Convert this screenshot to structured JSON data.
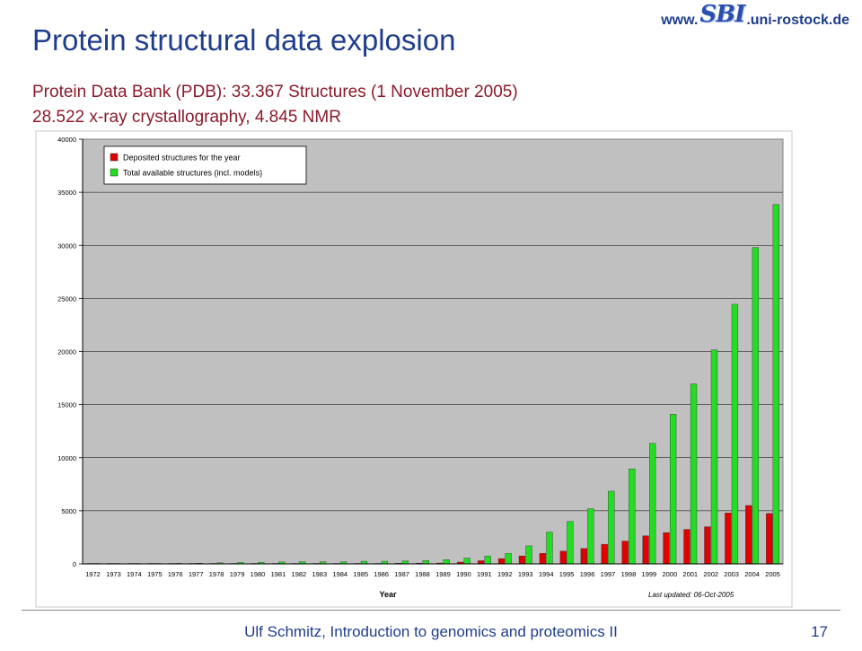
{
  "slide": {
    "title": "Protein structural data explosion",
    "subtitle1": "Protein Data Bank (PDB): 33.367 Structures (1 November 2005)",
    "subtitle2": "28.522 x-ray crystallography, 4.845 NMR",
    "logo_prefix": "www.",
    "logo_mark": "SBI",
    "logo_suffix": ".uni-rostock.de",
    "footer": "Ulf Schmitz, Introduction to genomics and proteomics II",
    "page_number": "17"
  },
  "chart_data": {
    "type": "bar",
    "xlabel": "Year",
    "ylabel": "",
    "ylim": [
      0,
      40000
    ],
    "yticks": [
      0,
      5000,
      10000,
      15000,
      20000,
      25000,
      30000,
      35000,
      40000
    ],
    "grid": true,
    "legend_position": "top-left",
    "note": "Last updated: 06-Oct-2005",
    "categories": [
      "1972",
      "1973",
      "1974",
      "1975",
      "1976",
      "1977",
      "1978",
      "1979",
      "1980",
      "1981",
      "1982",
      "1983",
      "1984",
      "1985",
      "1986",
      "1987",
      "1988",
      "1989",
      "1990",
      "1991",
      "1992",
      "1993",
      "1994",
      "1995",
      "1996",
      "1997",
      "1998",
      "1999",
      "2000",
      "2001",
      "2002",
      "2003",
      "2004",
      "2005"
    ],
    "series": [
      {
        "name": "Deposited structures for the year",
        "color": "#e00000",
        "values": [
          0,
          0,
          0,
          0,
          10,
          10,
          20,
          20,
          20,
          30,
          30,
          30,
          30,
          40,
          40,
          60,
          70,
          80,
          170,
          300,
          500,
          750,
          1000,
          1200,
          1450,
          1850,
          2150,
          2650,
          2950,
          3250,
          3500,
          4800,
          5500,
          4750
        ]
      },
      {
        "name": "Total available structures (incl. models)",
        "color": "#22dd22",
        "values": [
          0,
          0,
          0,
          0,
          50,
          60,
          100,
          130,
          150,
          180,
          200,
          200,
          200,
          250,
          250,
          280,
          320,
          400,
          550,
          750,
          1000,
          1700,
          3000,
          4000,
          5200,
          6850,
          8950,
          11350,
          14100,
          16950,
          20150,
          24450,
          29800,
          33850
        ]
      }
    ]
  }
}
